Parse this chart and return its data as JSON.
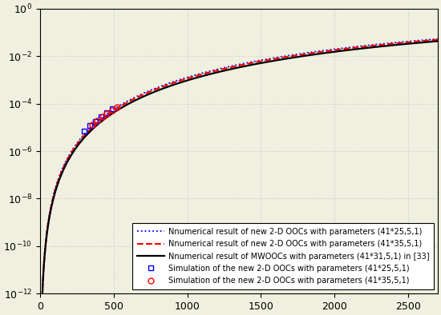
{
  "title": "",
  "xlabel": "",
  "ylabel": "",
  "xlim": [
    0,
    2700
  ],
  "ylim_log": [
    -12,
    0
  ],
  "xticks": [
    0,
    500,
    1000,
    1500,
    2000,
    2500
  ],
  "background_color": "#f0f0e0",
  "grid_color": "#c8c8c8",
  "blue_dotted_label": "Nnumerical result of new 2-D OOCs with parameters (41*25,5,1)",
  "red_dashed_label": "Nnumerical result of new 2-D OOCs with parameters (41*35,5,1)",
  "black_solid_label": "Nnumerical result of MWOOCs with parameters (41*31,5,1) in [33]",
  "blue_square_label": "Simulation of the new 2-D OOCs with parameters (41*25,5,1)",
  "red_circle_label": "Simulation of the new 2-D OOCs with parameters (41*35,5,1)",
  "sim_blue_N": [
    300,
    340,
    375,
    415,
    455,
    490
  ],
  "sim_red_N": [
    355,
    390,
    425,
    455,
    490,
    525
  ],
  "legend_fontsize": 7.0,
  "tick_fontsize": 9,
  "figsize": [
    5.5,
    3.94
  ],
  "dpi": 100
}
